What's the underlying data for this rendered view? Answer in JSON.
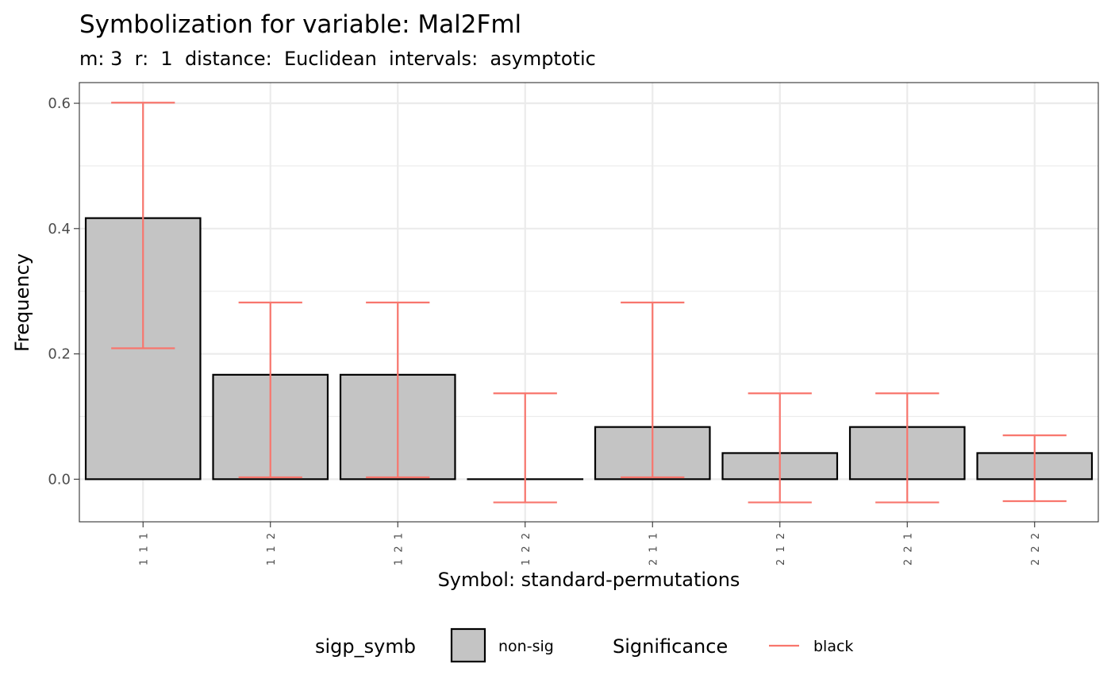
{
  "chart_data": {
    "type": "bar",
    "title": "Symbolization for variable: Mal2Fml",
    "subtitle": "m: 3  r:  1  distance:  Euclidean  intervals:  asymptotic",
    "xlabel": "Symbol: standard-permutations",
    "ylabel": "Frequency",
    "categories": [
      "1 1 1",
      "1 1 2",
      "1 2 1",
      "1 2 2",
      "2 1 1",
      "2 1 2",
      "2 2 1",
      "2 2 2"
    ],
    "values": [
      0.4167,
      0.1667,
      0.1667,
      0.0,
      0.0833,
      0.0417,
      0.0833,
      0.0417
    ],
    "error_low": [
      0.209,
      0.003,
      0.003,
      -0.037,
      0.003,
      -0.037,
      -0.037,
      -0.035
    ],
    "error_high": [
      0.601,
      0.282,
      0.282,
      0.137,
      0.282,
      0.137,
      0.137,
      0.07
    ],
    "ylim": [
      -0.068,
      0.633
    ],
    "yticks": [
      0.0,
      0.2,
      0.4,
      0.6
    ],
    "ytick_labels": [
      "0.0",
      "0.2",
      "0.4",
      "0.6"
    ],
    "grid": true,
    "legend_position": "bottom",
    "legend": [
      {
        "title": "sigp_symb",
        "label": "non-sig",
        "kind": "fill",
        "color": "#c4c4c4"
      },
      {
        "title": "Significance",
        "label": "black",
        "kind": "line",
        "color": "#f8766d"
      }
    ],
    "colors": {
      "bar_fill": "#c4c4c4",
      "bar_stroke": "#000000",
      "errorbar": "#f8766d",
      "grid": "#ebebeb",
      "panel_border": "#333333"
    }
  }
}
